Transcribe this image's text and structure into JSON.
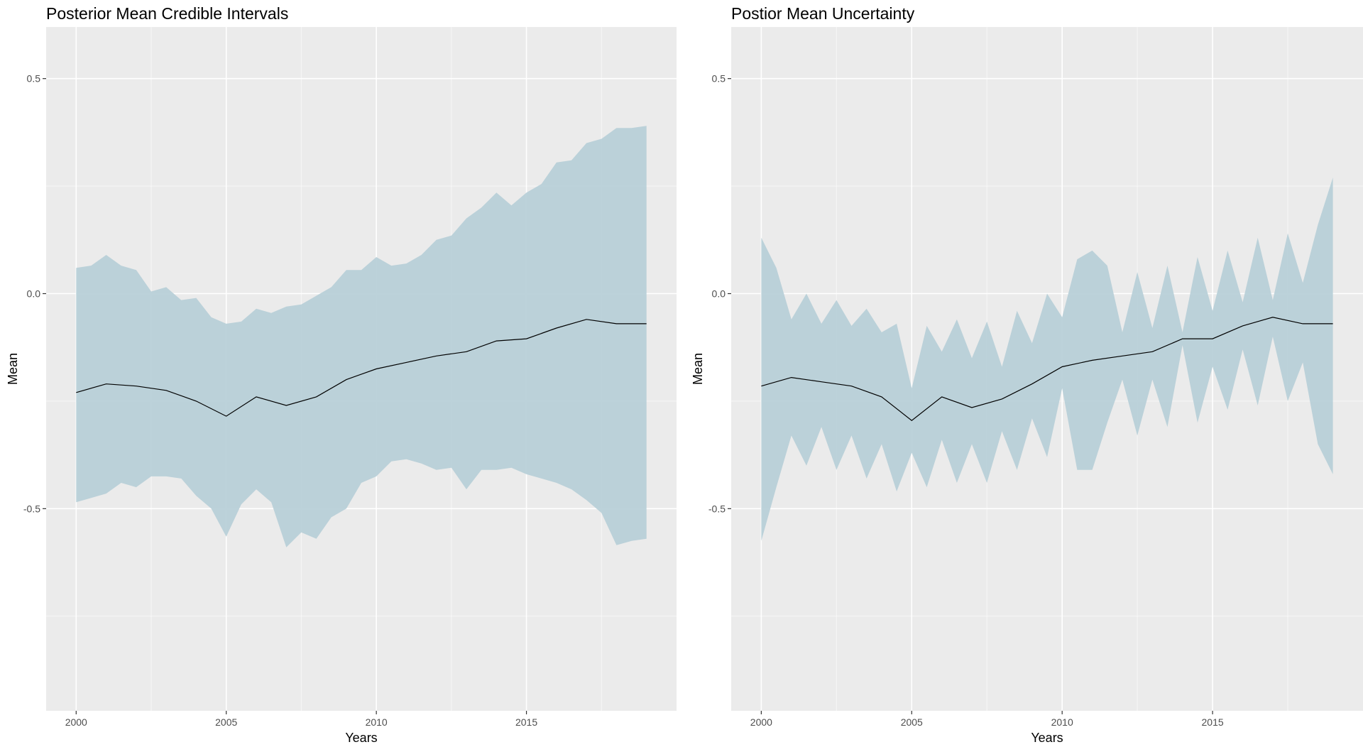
{
  "colors": {
    "panel_background": "#ebebeb",
    "grid_major": "#ffffff",
    "ribbon": "#b8d0d8",
    "line": "#000000"
  },
  "chart_data": [
    {
      "type": "area",
      "title": "Posterior Mean Credible Intervals",
      "xlabel": "Years",
      "ylabel": "Mean",
      "xlim": [
        1999,
        2020
      ],
      "ylim": [
        -0.97,
        0.62
      ],
      "x_ticks": [
        2000,
        2005,
        2010,
        2015
      ],
      "x_tick_labels": [
        "2000",
        "2005",
        "2010",
        "2015"
      ],
      "y_ticks": [
        -0.5,
        0.0,
        0.5
      ],
      "y_tick_labels": [
        "-0.5",
        "0.0",
        "0.5"
      ],
      "grid": true,
      "mean": {
        "x": [
          2000,
          2001,
          2002,
          2003,
          2004,
          2005,
          2006,
          2007,
          2008,
          2009,
          2010,
          2011,
          2012,
          2013,
          2014,
          2015,
          2016,
          2017,
          2018,
          2019
        ],
        "y": [
          -0.23,
          -0.21,
          -0.215,
          -0.225,
          -0.25,
          -0.285,
          -0.24,
          -0.26,
          -0.24,
          -0.2,
          -0.175,
          -0.16,
          -0.145,
          -0.135,
          -0.11,
          -0.105,
          -0.08,
          -0.06,
          -0.07,
          -0.07
        ]
      },
      "interval": {
        "x": [
          2000,
          2000.5,
          2001,
          2001.5,
          2002,
          2002.5,
          2003,
          2003.5,
          2004,
          2004.5,
          2005,
          2005.5,
          2006,
          2006.5,
          2007,
          2007.5,
          2008,
          2008.5,
          2009,
          2009.5,
          2010,
          2010.5,
          2011,
          2011.5,
          2012,
          2012.5,
          2013,
          2013.5,
          2014,
          2014.5,
          2015,
          2015.5,
          2016,
          2016.5,
          2017,
          2017.5,
          2018,
          2018.5,
          2019
        ],
        "upper": [
          0.06,
          0.065,
          0.09,
          0.065,
          0.055,
          0.005,
          0.015,
          -0.015,
          -0.01,
          -0.055,
          -0.07,
          -0.065,
          -0.035,
          -0.045,
          -0.03,
          -0.025,
          -0.005,
          0.015,
          0.055,
          0.055,
          0.085,
          0.065,
          0.07,
          0.09,
          0.125,
          0.135,
          0.175,
          0.2,
          0.235,
          0.205,
          0.235,
          0.255,
          0.305,
          0.31,
          0.35,
          0.36,
          0.385,
          0.385,
          0.39
        ],
        "lower": [
          -0.485,
          -0.475,
          -0.465,
          -0.44,
          -0.45,
          -0.425,
          -0.425,
          -0.43,
          -0.47,
          -0.5,
          -0.565,
          -0.49,
          -0.455,
          -0.485,
          -0.59,
          -0.555,
          -0.57,
          -0.52,
          -0.5,
          -0.44,
          -0.425,
          -0.39,
          -0.385,
          -0.395,
          -0.41,
          -0.405,
          -0.455,
          -0.41,
          -0.41,
          -0.405,
          -0.42,
          -0.43,
          -0.44,
          -0.455,
          -0.48,
          -0.51,
          -0.585,
          -0.575,
          -0.57
        ]
      }
    },
    {
      "type": "area",
      "title": "Postior Mean Uncertainty",
      "xlabel": "Years",
      "ylabel": "Mean",
      "xlim": [
        1999,
        2020
      ],
      "ylim": [
        -0.97,
        0.62
      ],
      "x_ticks": [
        2000,
        2005,
        2010,
        2015
      ],
      "x_tick_labels": [
        "2000",
        "2005",
        "2010",
        "2015"
      ],
      "y_ticks": [
        -0.5,
        0.0,
        0.5
      ],
      "y_tick_labels": [
        "-0.5",
        "0.0",
        "0.5"
      ],
      "grid": true,
      "mean": {
        "x": [
          2000,
          2001,
          2002,
          2003,
          2004,
          2005,
          2006,
          2007,
          2008,
          2009,
          2010,
          2011,
          2012,
          2013,
          2014,
          2015,
          2016,
          2017,
          2018,
          2019
        ],
        "y": [
          -0.215,
          -0.195,
          -0.205,
          -0.215,
          -0.24,
          -0.295,
          -0.24,
          -0.265,
          -0.245,
          -0.21,
          -0.17,
          -0.155,
          -0.145,
          -0.135,
          -0.105,
          -0.105,
          -0.075,
          -0.055,
          -0.07,
          -0.07
        ]
      },
      "interval": {
        "x": [
          2000,
          2000.5,
          2001,
          2001.5,
          2002,
          2002.5,
          2003,
          2003.5,
          2004,
          2004.5,
          2005,
          2005.5,
          2006,
          2006.5,
          2007,
          2007.5,
          2008,
          2008.5,
          2009,
          2009.5,
          2010,
          2010.5,
          2011,
          2011.5,
          2012,
          2012.5,
          2013,
          2013.5,
          2014,
          2014.5,
          2015,
          2015.5,
          2016,
          2016.5,
          2017,
          2017.5,
          2018,
          2018.5,
          2019
        ],
        "upper": [
          0.13,
          0.06,
          -0.06,
          0.0,
          -0.07,
          -0.015,
          -0.075,
          -0.035,
          -0.09,
          -0.07,
          -0.22,
          -0.075,
          -0.135,
          -0.06,
          -0.15,
          -0.065,
          -0.17,
          -0.04,
          -0.115,
          0.0,
          -0.055,
          0.08,
          0.1,
          0.065,
          -0.09,
          0.05,
          -0.08,
          0.065,
          -0.09,
          0.085,
          -0.04,
          0.1,
          -0.02,
          0.13,
          -0.015,
          0.14,
          0.025,
          0.16,
          0.27
        ],
        "lower": [
          -0.575,
          -0.45,
          -0.33,
          -0.4,
          -0.31,
          -0.41,
          -0.33,
          -0.43,
          -0.35,
          -0.46,
          -0.37,
          -0.45,
          -0.34,
          -0.44,
          -0.35,
          -0.44,
          -0.32,
          -0.41,
          -0.29,
          -0.38,
          -0.22,
          -0.41,
          -0.41,
          -0.3,
          -0.2,
          -0.33,
          -0.2,
          -0.31,
          -0.12,
          -0.3,
          -0.17,
          -0.27,
          -0.13,
          -0.26,
          -0.1,
          -0.25,
          -0.16,
          -0.35,
          -0.42
        ]
      }
    }
  ]
}
